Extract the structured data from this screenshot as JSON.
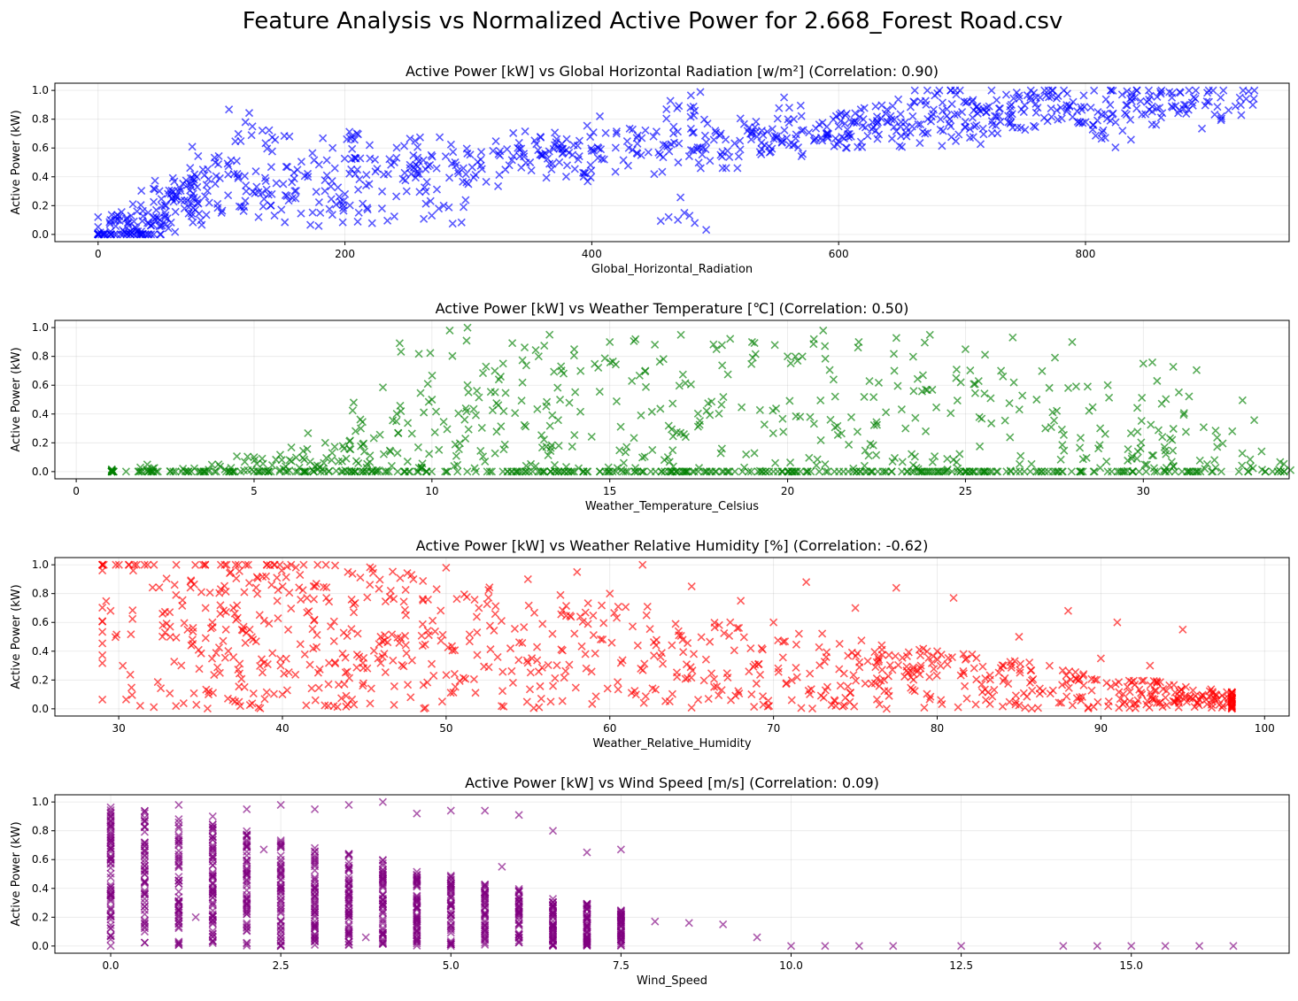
{
  "figure": {
    "title": "Feature Analysis vs Normalized Active Power for 2.668_Forest Road.csv"
  },
  "chart_data": [
    {
      "type": "scatter",
      "title": "Active Power [kW] vs Global Horizontal Radiation [w/m²] (Correlation: 0.90)",
      "xlabel": "Global_Horizontal_Radiation",
      "ylabel": "Active Power (kW)",
      "xlim": [
        -35,
        965
      ],
      "ylim": [
        -0.05,
        1.05
      ],
      "xticks": [
        0,
        200,
        400,
        600,
        800
      ],
      "yticks": [
        0.0,
        0.2,
        0.4,
        0.6,
        0.8,
        1.0
      ],
      "xtick_labels": [
        "0",
        "200",
        "400",
        "600",
        "800"
      ],
      "ytick_labels": [
        "0.0",
        "0.2",
        "0.4",
        "0.6",
        "0.8",
        "1.0"
      ],
      "marker": "x",
      "color": "#0000ff",
      "grid": true,
      "series": [
        {
          "points": [
            [
              0,
              0
            ],
            [
              5,
              0.01
            ],
            [
              10,
              0.02
            ],
            [
              15,
              0
            ],
            [
              20,
              0.03
            ],
            [
              25,
              0.01
            ],
            [
              30,
              0.05
            ],
            [
              35,
              0.02
            ],
            [
              40,
              0.08
            ],
            [
              45,
              0.12
            ],
            [
              50,
              0.1
            ],
            [
              55,
              0.2
            ],
            [
              60,
              0.25
            ],
            [
              65,
              0.3
            ],
            [
              70,
              0.18
            ],
            [
              75,
              0.35
            ],
            [
              80,
              0.4
            ],
            [
              85,
              0.45
            ],
            [
              90,
              0.22
            ],
            [
              95,
              0.5
            ],
            [
              100,
              0.15
            ],
            [
              110,
              0.42
            ],
            [
              120,
              0.3
            ],
            [
              125,
              0.75
            ],
            [
              130,
              0.12
            ],
            [
              140,
              0.2
            ],
            [
              150,
              0.35
            ],
            [
              155,
              0.68
            ],
            [
              160,
              0.25
            ],
            [
              170,
              0.4
            ],
            [
              180,
              0.15
            ],
            [
              190,
              0.6
            ],
            [
              200,
              0.28
            ],
            [
              210,
              0.45
            ],
            [
              220,
              0.62
            ],
            [
              230,
              0.18
            ],
            [
              240,
              0.5
            ],
            [
              250,
              0.3
            ],
            [
              260,
              0.42
            ],
            [
              270,
              0.55
            ],
            [
              280,
              0.2
            ],
            [
              290,
              0.48
            ],
            [
              300,
              0.35
            ],
            [
              310,
              0.52
            ],
            [
              320,
              0.58
            ],
            [
              330,
              0.45
            ],
            [
              340,
              0.6
            ],
            [
              350,
              0.5
            ],
            [
              360,
              0.55
            ],
            [
              370,
              0.62
            ],
            [
              380,
              0.48
            ],
            [
              390,
              0.65
            ],
            [
              400,
              0.58
            ],
            [
              410,
              0.52
            ],
            [
              420,
              0.7
            ],
            [
              430,
              0.6
            ],
            [
              440,
              0.55
            ],
            [
              450,
              0.68
            ],
            [
              460,
              0.62
            ],
            [
              470,
              0.5
            ],
            [
              475,
              0.15
            ],
            [
              480,
              0.88
            ],
            [
              490,
              0.6
            ],
            [
              500,
              0.72
            ],
            [
              510,
              0.58
            ],
            [
              520,
              0.65
            ],
            [
              530,
              0.7
            ],
            [
              540,
              0.62
            ],
            [
              550,
              0.68
            ],
            [
              560,
              0.88
            ],
            [
              570,
              0.72
            ],
            [
              580,
              0.65
            ],
            [
              590,
              0.7
            ],
            [
              600,
              0.75
            ],
            [
              610,
              0.68
            ],
            [
              620,
              0.8
            ],
            [
              630,
              0.72
            ],
            [
              640,
              0.78
            ],
            [
              650,
              0.75
            ],
            [
              660,
              0.82
            ],
            [
              670,
              0.7
            ],
            [
              680,
              0.98
            ],
            [
              690,
              0.8
            ],
            [
              700,
              0.85
            ],
            [
              710,
              0.75
            ],
            [
              720,
              0.88
            ],
            [
              730,
              0.82
            ],
            [
              740,
              0.9
            ],
            [
              750,
              0.85
            ],
            [
              760,
              0.95
            ],
            [
              770,
              1.0
            ],
            [
              780,
              0.88
            ],
            [
              790,
              0.92
            ],
            [
              800,
              0.78
            ],
            [
              810,
              0.85
            ],
            [
              820,
              0.9
            ],
            [
              830,
              0.72
            ],
            [
              840,
              0.95
            ],
            [
              850,
              0.92
            ],
            [
              860,
              0.88
            ],
            [
              870,
              0.95
            ],
            [
              880,
              0.9
            ],
            [
              900,
              0.92
            ],
            [
              910,
              0.82
            ],
            [
              925,
              0.95
            ]
          ]
        }
      ]
    },
    {
      "type": "scatter",
      "title": "Active Power [kW] vs Weather Temperature [℃] (Correlation: 0.50)",
      "xlabel": "Weather_Temperature_Celsius",
      "ylabel": "Active Power (kW)",
      "xlim": [
        -0.6,
        34.1
      ],
      "ylim": [
        -0.05,
        1.05
      ],
      "xticks": [
        0,
        5,
        10,
        15,
        20,
        25,
        30
      ],
      "yticks": [
        0.0,
        0.2,
        0.4,
        0.6,
        0.8,
        1.0
      ],
      "xtick_labels": [
        "0",
        "5",
        "10",
        "15",
        "20",
        "25",
        "30"
      ],
      "ytick_labels": [
        "0.0",
        "0.2",
        "0.4",
        "0.6",
        "0.8",
        "1.0"
      ],
      "marker": "x",
      "color": "#008000",
      "grid": true,
      "series": [
        {
          "points": [
            [
              1,
              0
            ],
            [
              2,
              0
            ],
            [
              3,
              0.02
            ],
            [
              4,
              0.05
            ],
            [
              5,
              0.1
            ],
            [
              6,
              0.08
            ],
            [
              7,
              0.2
            ],
            [
              8,
              0.3
            ],
            [
              9,
              0.35
            ],
            [
              10,
              0.5
            ],
            [
              10.5,
              0.98
            ],
            [
              11,
              0.6
            ],
            [
              12,
              0.75
            ],
            [
              13,
              0.8
            ],
            [
              14,
              0.85
            ],
            [
              15,
              0.9
            ],
            [
              16,
              0.7
            ],
            [
              17,
              0.95
            ],
            [
              18,
              0.85
            ],
            [
              19,
              0.9
            ],
            [
              20,
              0.8
            ],
            [
              21,
              0.98
            ],
            [
              22,
              0.9
            ],
            [
              23,
              0.7
            ],
            [
              24,
              0.95
            ],
            [
              25,
              0.85
            ],
            [
              26,
              0.7
            ],
            [
              27,
              0.5
            ],
            [
              28,
              0.9
            ],
            [
              29,
              0.6
            ],
            [
              30,
              0.75
            ],
            [
              31,
              0.55
            ],
            [
              32,
              0.08
            ],
            [
              32.5,
              0.28
            ],
            [
              11,
              1.0
            ],
            [
              15,
              0.0
            ],
            [
              20,
              0.0
            ],
            [
              25,
              0.0
            ],
            [
              29,
              0.0
            ]
          ]
        }
      ]
    },
    {
      "type": "scatter",
      "title": "Active Power [kW] vs Weather Relative Humidity [%] (Correlation: -0.62)",
      "xlabel": "Weather_Relative_Humidity",
      "ylabel": "Active Power (kW)",
      "xlim": [
        26.1,
        101.5
      ],
      "ylim": [
        -0.05,
        1.05
      ],
      "xticks": [
        30,
        40,
        50,
        60,
        70,
        80,
        90,
        100
      ],
      "yticks": [
        0.0,
        0.2,
        0.4,
        0.6,
        0.8,
        1.0
      ],
      "xtick_labels": [
        "30",
        "40",
        "50",
        "60",
        "70",
        "80",
        "90",
        "100"
      ],
      "ytick_labels": [
        "0.0",
        "0.2",
        "0.4",
        "0.6",
        "0.8",
        "1.0"
      ],
      "marker": "x",
      "color": "#ff0000",
      "grid": true,
      "series": [
        {
          "points": [
            [
              29.5,
              0.68
            ],
            [
              33.5,
              0.79
            ],
            [
              34.5,
              0.48
            ],
            [
              35.5,
              0.12
            ],
            [
              37,
              0.7
            ],
            [
              38,
              0.55
            ],
            [
              39,
              0.92
            ],
            [
              40,
              0.1
            ],
            [
              42,
              0.85
            ],
            [
              44,
              0.95
            ],
            [
              46,
              0.5
            ],
            [
              48,
              0.9
            ],
            [
              50,
              0.98
            ],
            [
              52,
              0.7
            ],
            [
              55,
              0.9
            ],
            [
              58,
              0.95
            ],
            [
              60,
              0.8
            ],
            [
              62,
              1.0
            ],
            [
              65,
              0.85
            ],
            [
              68,
              0.75
            ],
            [
              70,
              0.6
            ],
            [
              72,
              0.88
            ],
            [
              75,
              0.7
            ],
            [
              77.5,
              0.84
            ],
            [
              80,
              0.4
            ],
            [
              81,
              0.77
            ],
            [
              85,
              0.5
            ],
            [
              88,
              0.68
            ],
            [
              90,
              0.35
            ],
            [
              91,
              0.6
            ],
            [
              93,
              0.3
            ],
            [
              95,
              0.55
            ],
            [
              97,
              0.1
            ],
            [
              98,
              0.0
            ]
          ]
        }
      ]
    },
    {
      "type": "scatter",
      "title": "Active Power [kW] vs Wind Speed [m/s] (Correlation: 0.09)",
      "xlabel": "Wind_Speed",
      "ylabel": "Active Power (kW)",
      "xlim": [
        -0.82,
        17.32
      ],
      "ylim": [
        -0.05,
        1.05
      ],
      "xticks": [
        0.0,
        2.5,
        5.0,
        7.5,
        10.0,
        12.5,
        15.0
      ],
      "yticks": [
        0.0,
        0.2,
        0.4,
        0.6,
        0.8,
        1.0
      ],
      "xtick_labels": [
        "0.0",
        "2.5",
        "5.0",
        "7.5",
        "10.0",
        "12.5",
        "15.0"
      ],
      "ytick_labels": [
        "0.0",
        "0.2",
        "0.4",
        "0.6",
        "0.8",
        "1.0"
      ],
      "marker": "x",
      "color": "#800080",
      "grid": true,
      "series": [
        {
          "points": [
            [
              0,
              0
            ],
            [
              0,
              0.6
            ],
            [
              0.5,
              0.72
            ],
            [
              1,
              0.98
            ],
            [
              1.25,
              0.2
            ],
            [
              1.5,
              0.9
            ],
            [
              2,
              0.95
            ],
            [
              2.25,
              0.67
            ],
            [
              2.5,
              0.98
            ],
            [
              3,
              0.95
            ],
            [
              3.5,
              0.98
            ],
            [
              3.75,
              0.06
            ],
            [
              4,
              1.0
            ],
            [
              4.5,
              0.92
            ],
            [
              5,
              0.94
            ],
            [
              5.5,
              0.94
            ],
            [
              5.75,
              0.55
            ],
            [
              6,
              0.91
            ],
            [
              6.5,
              0.8
            ],
            [
              7,
              0.65
            ],
            [
              7.5,
              0.67
            ],
            [
              8,
              0.17
            ],
            [
              8.5,
              0.16
            ],
            [
              9,
              0.15
            ],
            [
              9.5,
              0.06
            ],
            [
              10,
              0
            ],
            [
              10.5,
              0
            ],
            [
              11,
              0
            ],
            [
              11.5,
              0
            ],
            [
              12.5,
              0
            ],
            [
              14,
              0
            ],
            [
              14.5,
              0
            ],
            [
              15,
              0
            ],
            [
              15.5,
              0
            ],
            [
              16,
              0
            ],
            [
              16.5,
              0
            ]
          ]
        }
      ]
    }
  ]
}
